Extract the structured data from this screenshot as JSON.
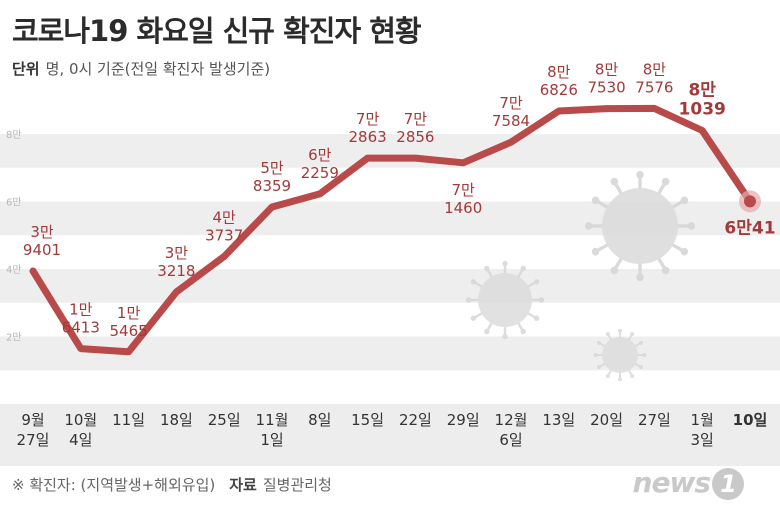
{
  "title": "코로나19 화요일 신규 확진자 현황",
  "unit": {
    "key": "단위",
    "text": "명, 0시 기준(전일 확진자 발생기준)"
  },
  "footer": {
    "note": "※ 확진자: (지역발생+해외유입)",
    "source_key": "자료",
    "source": "질병관리청"
  },
  "logo": {
    "text": "news",
    "mark": "1"
  },
  "colors": {
    "line": "#b94a4a",
    "label": "#a33a3a",
    "band": "#eeeeee",
    "xaxis_bg": "#ededed"
  },
  "chart_data": {
    "type": "line",
    "title": "코로나19 화요일 신규 확진자 현황",
    "ylabel": "",
    "ylim": [
      0,
      82000
    ],
    "yticks": [
      {
        "value": 20000,
        "label": "2만"
      },
      {
        "value": 40000,
        "label": "4만"
      },
      {
        "value": 60000,
        "label": "6만"
      },
      {
        "value": 80000,
        "label": "8만"
      }
    ],
    "categories": [
      [
        "9월",
        "27일"
      ],
      [
        "10월",
        "4일"
      ],
      [
        "11일"
      ],
      [
        "18일"
      ],
      [
        "25일"
      ],
      [
        "11월",
        "1일"
      ],
      [
        "8일"
      ],
      [
        "15일"
      ],
      [
        "22일"
      ],
      [
        "29일"
      ],
      [
        "12월",
        "6일"
      ],
      [
        "13일"
      ],
      [
        "20일"
      ],
      [
        "27일"
      ],
      [
        "1월",
        "3일"
      ],
      [
        "10일"
      ]
    ],
    "values": [
      39401,
      16413,
      15465,
      33218,
      43737,
      58359,
      62259,
      72863,
      72856,
      71460,
      77584,
      86826,
      87530,
      87576,
      81039,
      60041
    ],
    "value_labels": [
      [
        "3만",
        "9401"
      ],
      [
        "1만",
        "6413"
      ],
      [
        "1만",
        "5465"
      ],
      [
        "3만",
        "3218"
      ],
      [
        "4만",
        "3737"
      ],
      [
        "5만",
        "8359"
      ],
      [
        "6만",
        "2259"
      ],
      [
        "7만",
        "2863"
      ],
      [
        "7만",
        "2856"
      ],
      [
        "7만",
        "1460"
      ],
      [
        "7만",
        "7584"
      ],
      [
        "8만",
        "6826"
      ],
      [
        "8만",
        "7530"
      ],
      [
        "8만",
        "7576"
      ],
      [
        "8만",
        "1039"
      ],
      [
        "6만41"
      ]
    ],
    "grid": true,
    "legend": "none"
  }
}
